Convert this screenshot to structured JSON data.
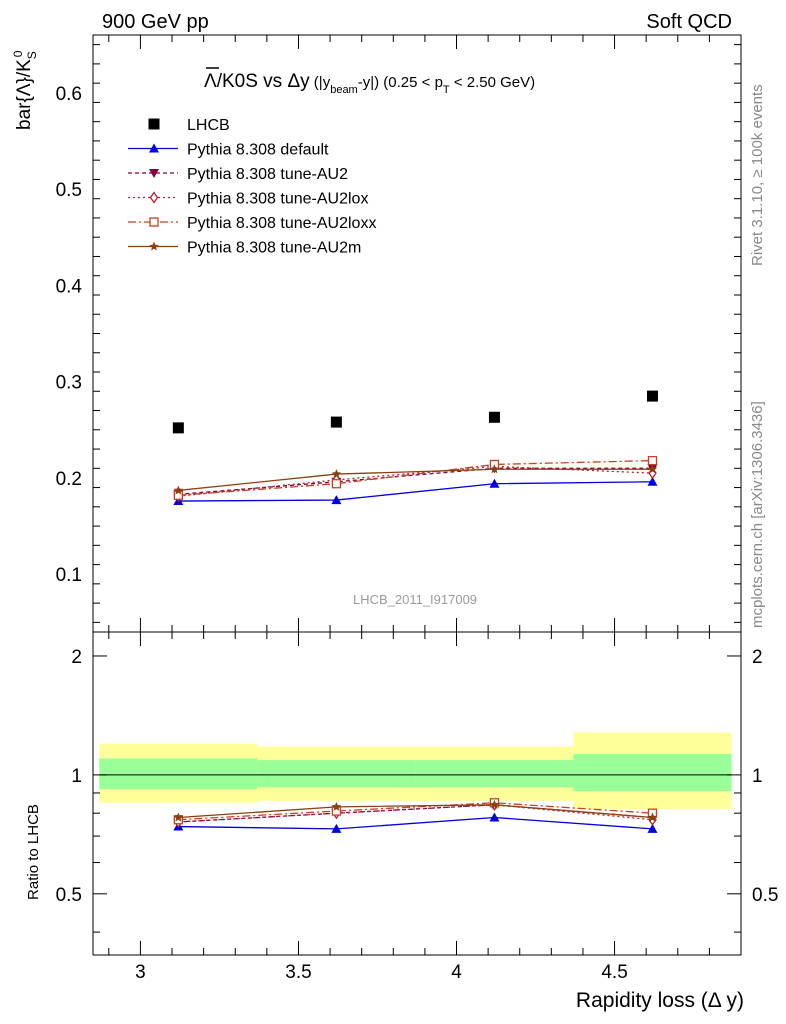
{
  "header": {
    "left": "900 GeV pp",
    "right": "Soft QCD"
  },
  "side_labels": {
    "rivet": "Rivet 3.1.10, ≥ 100k events",
    "mcplots": "mcplots.cern.ch [arXiv:1306.3436]"
  },
  "watermark": "LHCB_2011_I917009",
  "chart_data": {
    "type": "line",
    "title": {
      "main": "Λ/K0S vs Δy",
      "paren_open": " (|y",
      "beam_sub": "beam",
      "paren_close": "-y|) (0.25 < p",
      "pt_sub": "T",
      "range_tail": " < 2.50 GeV)"
    },
    "ylabel_top": {
      "prefix": "bar{Λ}/K",
      "sub": "S",
      "sup": "0"
    },
    "ylabel_bottom": "Ratio to LHCB",
    "xlabel": "Rapidity loss (Δ y)",
    "xlim": [
      2.85,
      4.9
    ],
    "ylim_top": [
      0.04,
      0.66
    ],
    "ylim_bottom": [
      0.35,
      2.3
    ],
    "xticks": [
      3,
      3.5,
      4,
      4.5
    ],
    "xtick_labels": [
      "3",
      "3.5",
      "4",
      "4.5"
    ],
    "yticks_top": [
      0.1,
      0.2,
      0.3,
      0.4,
      0.5,
      0.6
    ],
    "ytick_labels_top": [
      "0.1",
      "0.2",
      "0.3",
      "0.4",
      "0.5",
      "0.6"
    ],
    "yticks_bottom": [
      0.5,
      1,
      2
    ],
    "ytick_labels_bottom": [
      "0.5",
      "1",
      "2"
    ],
    "x": [
      3.12,
      3.62,
      4.12,
      4.62
    ],
    "bin_edges": [
      2.87,
      3.37,
      3.87,
      4.37,
      4.87
    ],
    "data": {
      "name": "LHCB",
      "color": "#000000",
      "values": [
        0.252,
        0.258,
        0.263,
        0.285
      ],
      "band_green": [
        [
          0.92,
          1.1
        ],
        [
          0.93,
          1.09
        ],
        [
          0.93,
          1.09
        ],
        [
          0.91,
          1.13
        ]
      ],
      "band_yellow": [
        [
          0.85,
          1.2
        ],
        [
          0.86,
          1.18
        ],
        [
          0.86,
          1.18
        ],
        [
          0.82,
          1.28
        ]
      ]
    },
    "series": [
      {
        "name": "Pythia 8.308 default",
        "color": "#0000dd",
        "dash": "",
        "marker": "triangle",
        "values": [
          0.176,
          0.177,
          0.194,
          0.196
        ],
        "ratio": [
          0.74,
          0.73,
          0.78,
          0.73
        ]
      },
      {
        "name": "Pythia 8.308 tune-AU2",
        "color": "#800040",
        "dash": "4,3",
        "marker": "triangle-down",
        "values": [
          0.183,
          0.196,
          0.21,
          0.21
        ],
        "ratio": [
          0.76,
          0.8,
          0.84,
          0.78
        ]
      },
      {
        "name": "Pythia 8.308 tune-AU2lox",
        "color": "#b02030",
        "dash": "2,3",
        "marker": "diamond",
        "values": [
          0.181,
          0.198,
          0.212,
          0.205
        ],
        "ratio": [
          0.76,
          0.8,
          0.84,
          0.77
        ]
      },
      {
        "name": "Pythia 8.308 tune-AU2loxx",
        "color": "#c84020",
        "dash": "8,3,2,3",
        "marker": "square-open",
        "values": [
          0.182,
          0.194,
          0.214,
          0.218
        ],
        "ratio": [
          0.77,
          0.81,
          0.85,
          0.8
        ]
      },
      {
        "name": "Pythia 8.308 tune-AU2m",
        "color": "#8b4010",
        "dash": "",
        "marker": "star",
        "values": [
          0.187,
          0.204,
          0.209,
          0.209
        ],
        "ratio": [
          0.78,
          0.83,
          0.84,
          0.78
        ]
      }
    ],
    "reference_line": 1,
    "legend_position": "top-left",
    "band_colors": {
      "green": "#99ff99",
      "yellow": "#ffff99"
    }
  }
}
